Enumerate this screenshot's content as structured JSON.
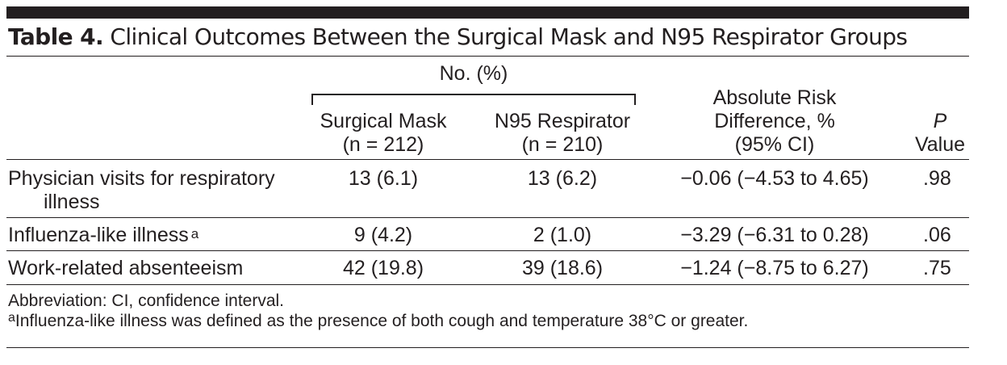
{
  "title": {
    "label": "Table 4.",
    "text": "Clinical Outcomes Between the Surgical Mask and N95 Respirator Groups"
  },
  "header": {
    "group": "No. (%)",
    "col_surgical_line1": "Surgical Mask",
    "col_surgical_line2": "(n = 212)",
    "col_n95_line1": "N95 Respirator",
    "col_n95_line2": "(n = 210)",
    "col_ard_line1": "Absolute Risk",
    "col_ard_line2": "Difference, %",
    "col_ard_line3": "(95% CI)",
    "col_p_line1": "P",
    "col_p_line2": "Value"
  },
  "rows": [
    {
      "outcome_line1": "Physician visits for respiratory",
      "outcome_line2": "illness",
      "footnote": "",
      "surgical": "13 (6.1)",
      "n95": "13 (6.2)",
      "ard": "−0.06 (−4.53 to 4.65)",
      "p": ".98"
    },
    {
      "outcome_line1": "Influenza-like illness",
      "outcome_line2": "",
      "footnote": "a",
      "surgical": "9 (4.2)",
      "n95": "2 (1.0)",
      "ard": "−3.29 (−6.31 to 0.28)",
      "p": ".06"
    },
    {
      "outcome_line1": "Work-related absenteeism",
      "outcome_line2": "",
      "footnote": "",
      "surgical": "42 (19.8)",
      "n95": "39 (18.6)",
      "ard": "−1.24 (−8.75 to 6.27)",
      "p": ".75"
    }
  ],
  "footnotes": {
    "abbreviation": "Abbreviation: CI, confidence interval.",
    "a_marker": "a",
    "a_text": "Influenza-like illness was defined as the presence of both cough and temperature 38°C or greater."
  }
}
